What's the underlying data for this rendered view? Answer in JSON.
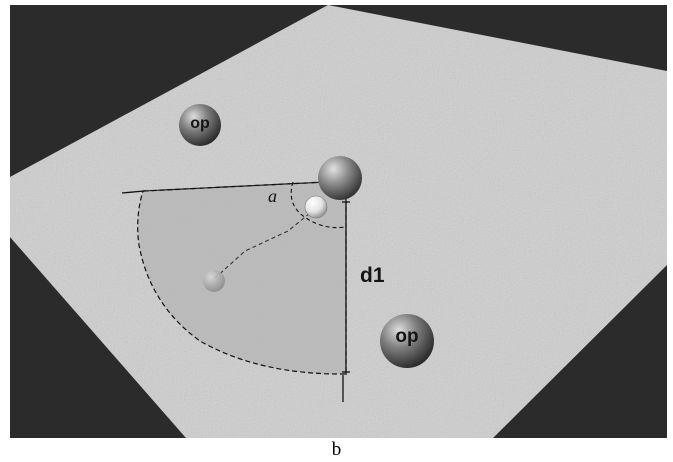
{
  "colors": {
    "background": "#2b2b2b",
    "floor": "#cfcfcf",
    "sector_fill": "#b6b6b6",
    "lines": "#111111"
  },
  "icons": [
    "opponent-sphere",
    "player-sphere",
    "ball-sphere",
    "small-ball-sphere"
  ],
  "scene": {
    "opponents": [
      {
        "label": "op"
      },
      {
        "label": "op"
      }
    ],
    "angle_label": "a",
    "distance_label": "d1"
  },
  "caption": "b"
}
